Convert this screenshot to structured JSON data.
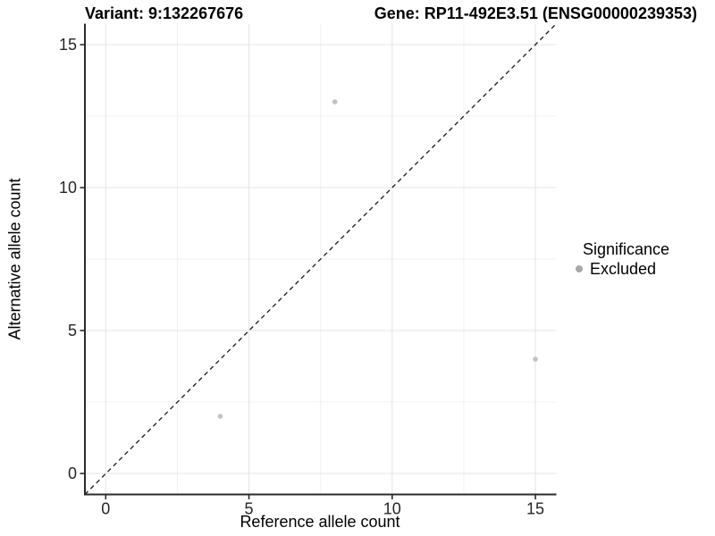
{
  "titles": {
    "variant": "Variant: 9:132267676",
    "gene": "Gene: RP11-492E3.51 (ENSG00000239353)"
  },
  "legend": {
    "title": "Significance",
    "items": [
      {
        "label": "Excluded",
        "color": "#b2b2b2"
      }
    ]
  },
  "chart_data": {
    "type": "scatter",
    "title_left": "Variant: 9:132267676",
    "title_right": "Gene: RP11-492E3.51 (ENSG00000239353)",
    "xlabel": "Reference allele count",
    "ylabel": "Alternative allele count",
    "xlim": [
      -0.75,
      15.75
    ],
    "ylim": [
      -0.75,
      15.75
    ],
    "xticks": [
      0,
      5,
      10,
      15
    ],
    "yticks": [
      0,
      5,
      10,
      15
    ],
    "minor_xticks": [
      2.5,
      7.5,
      12.5
    ],
    "minor_yticks": [
      2.5,
      7.5,
      12.5
    ],
    "grid": true,
    "legend_position": "right",
    "legend_title": "Significance",
    "series": [
      {
        "name": "Excluded",
        "color": "#c2c2c2",
        "points": [
          {
            "x": 8,
            "y": 13
          },
          {
            "x": 4,
            "y": 2
          },
          {
            "x": 15,
            "y": 4
          }
        ]
      }
    ],
    "reference_line": {
      "type": "identity",
      "equation": "y = x",
      "style": "dashed",
      "color": "#1a1a1a"
    }
  },
  "colors": {
    "background": "#ffffff",
    "major_grid": "#e4e4e4",
    "minor_grid": "#f1f1f1",
    "axis_line": "#2b2b2b",
    "tick_text": "#262626",
    "point": "#c2c2c2",
    "legend_dot": "#a8a8a8"
  }
}
